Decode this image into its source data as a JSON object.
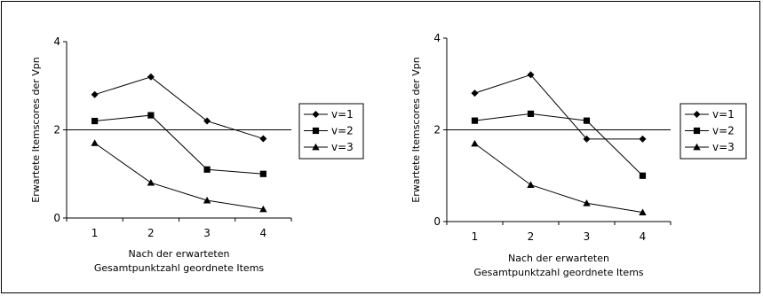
{
  "chart_data": [
    {
      "type": "line",
      "title": "",
      "xlabel": "Nach der erwarteten Gesamtpunktzahl geordnete Items",
      "xlabel_lines": [
        "Nach der erwarteten",
        "Gesamtpunktzahl geordnete Items"
      ],
      "ylabel": "Erwartete Itemscores der Vpn",
      "categories": [
        "1",
        "2",
        "3",
        "4"
      ],
      "x": [
        1,
        2,
        3,
        4
      ],
      "xlim": [
        0.5,
        4.5
      ],
      "ylim": [
        0,
        4
      ],
      "yticks": [
        0,
        2,
        4
      ],
      "grid": false,
      "reference_line": 2,
      "legend": "right",
      "series": [
        {
          "name": "v=1",
          "marker": "diamond",
          "values": [
            2.8,
            3.2,
            2.2,
            1.8
          ]
        },
        {
          "name": "v=2",
          "marker": "square",
          "values": [
            2.2,
            2.33,
            1.1,
            1.0
          ]
        },
        {
          "name": "v=3",
          "marker": "triangle",
          "values": [
            1.7,
            0.8,
            0.4,
            0.2
          ]
        }
      ]
    },
    {
      "type": "line",
      "title": "",
      "xlabel": "Nach der erwarteten Gesamtpunktzahl geordnete Items",
      "xlabel_lines": [
        "Nach der erwarteten",
        "Gesamtpunktzahl geordnete Items"
      ],
      "ylabel": "Erwartete Itemscores der Vpn",
      "categories": [
        "1",
        "2",
        "3",
        "4"
      ],
      "x": [
        1,
        2,
        3,
        4
      ],
      "xlim": [
        0.5,
        4.5
      ],
      "ylim": [
        0,
        4
      ],
      "yticks": [
        0,
        2,
        4
      ],
      "grid": false,
      "reference_line": 2,
      "legend": "right",
      "series": [
        {
          "name": "v=1",
          "marker": "diamond",
          "values": [
            2.8,
            3.2,
            1.8,
            1.8
          ]
        },
        {
          "name": "v=2",
          "marker": "square",
          "values": [
            2.2,
            2.35,
            2.2,
            1.0
          ]
        },
        {
          "name": "v=3",
          "marker": "triangle",
          "values": [
            1.7,
            0.8,
            0.4,
            0.2
          ]
        }
      ]
    }
  ],
  "colors": {
    "line": "#000000",
    "background": "#ffffff"
  }
}
